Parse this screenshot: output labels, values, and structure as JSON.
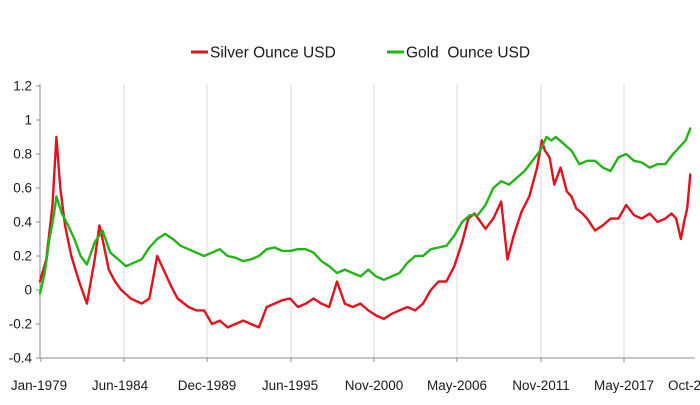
{
  "chart_data": {
    "type": "line",
    "title": "",
    "xlabel": "",
    "ylabel": "",
    "ylim": [
      -0.4,
      1.2
    ],
    "y_ticks": [
      "-0.4",
      "-0.2",
      "0",
      "0.2",
      "0.4",
      "0.6",
      "0.8",
      "1",
      "1.2"
    ],
    "x_ticks": [
      "Jan-1979",
      "Jun-1984",
      "Dec-1989",
      "Jun-1995",
      "Nov-2000",
      "May-2006",
      "Nov-2011",
      "May-2017",
      "Oct-2"
    ],
    "grid": "vertical",
    "legend_position": "top",
    "series": [
      {
        "name": "Silver Ounce USD",
        "color": "#e0121c",
        "x": [
          1979.0,
          1979.4,
          1979.8,
          1980.05,
          1980.3,
          1980.6,
          1981.0,
          1981.5,
          1982.0,
          1982.5,
          1982.8,
          1983.0,
          1983.4,
          1983.8,
          1984.2,
          1984.8,
          1985.5,
          1986.0,
          1986.5,
          1987.0,
          1987.4,
          1987.8,
          1988.5,
          1989.0,
          1989.5,
          1990.0,
          1990.5,
          1991.0,
          1991.5,
          1992.0,
          1992.5,
          1993.0,
          1993.5,
          1994.0,
          1994.5,
          1995.0,
          1995.5,
          1996.0,
          1996.5,
          1997.0,
          1997.5,
          1998.0,
          1998.5,
          1999.0,
          1999.5,
          2000.0,
          2000.5,
          2001.0,
          2001.5,
          2002.0,
          2002.5,
          2003.0,
          2003.5,
          2004.0,
          2004.5,
          2005.0,
          2005.5,
          2006.0,
          2006.4,
          2006.8,
          2007.5,
          2008.0,
          2008.5,
          2008.9,
          2009.3,
          2009.8,
          2010.3,
          2010.8,
          2011.1,
          2011.3,
          2011.6,
          2011.9,
          2012.3,
          2012.7,
          2013.0,
          2013.3,
          2013.7,
          2014.0,
          2014.5,
          2015.0,
          2015.5,
          2016.0,
          2016.5,
          2017.0,
          2017.5,
          2018.0,
          2018.5,
          2019.0,
          2019.4,
          2019.7,
          2020.0,
          2020.2,
          2020.4,
          2020.6
        ],
        "values": [
          0.05,
          0.18,
          0.5,
          0.9,
          0.6,
          0.38,
          0.2,
          0.05,
          -0.08,
          0.18,
          0.38,
          0.3,
          0.12,
          0.05,
          0.0,
          -0.05,
          -0.08,
          -0.05,
          0.2,
          0.1,
          0.02,
          -0.05,
          -0.1,
          -0.12,
          -0.12,
          -0.2,
          -0.18,
          -0.22,
          -0.2,
          -0.18,
          -0.2,
          -0.22,
          -0.1,
          -0.08,
          -0.06,
          -0.05,
          -0.1,
          -0.08,
          -0.05,
          -0.08,
          -0.1,
          0.05,
          -0.08,
          -0.1,
          -0.08,
          -0.12,
          -0.15,
          -0.17,
          -0.14,
          -0.12,
          -0.1,
          -0.12,
          -0.08,
          0.0,
          0.05,
          0.05,
          0.14,
          0.28,
          0.42,
          0.45,
          0.36,
          0.42,
          0.52,
          0.18,
          0.32,
          0.46,
          0.55,
          0.72,
          0.88,
          0.82,
          0.78,
          0.62,
          0.72,
          0.58,
          0.55,
          0.48,
          0.45,
          0.42,
          0.35,
          0.38,
          0.42,
          0.42,
          0.5,
          0.44,
          0.42,
          0.45,
          0.4,
          0.42,
          0.45,
          0.42,
          0.3,
          0.4,
          0.48,
          0.68
        ]
      },
      {
        "name": "Gold  Ounce USD",
        "color": "#22b518",
        "x": [
          1979.0,
          1979.3,
          1979.6,
          1979.9,
          1980.05,
          1980.4,
          1980.8,
          1981.2,
          1981.6,
          1982.0,
          1982.5,
          1983.0,
          1983.5,
          1984.0,
          1984.5,
          1985.0,
          1985.5,
          1986.0,
          1986.5,
          1987.0,
          1987.5,
          1988.0,
          1988.5,
          1989.0,
          1989.5,
          1990.0,
          1990.5,
          1991.0,
          1991.5,
          1992.0,
          1992.5,
          1993.0,
          1993.5,
          1994.0,
          1994.5,
          1995.0,
          1995.5,
          1996.0,
          1996.5,
          1997.0,
          1997.5,
          1998.0,
          1998.5,
          1999.0,
          1999.5,
          2000.0,
          2000.5,
          2001.0,
          2001.5,
          2002.0,
          2002.5,
          2003.0,
          2003.5,
          2004.0,
          2004.5,
          2005.0,
          2005.5,
          2006.0,
          2006.5,
          2007.0,
          2007.5,
          2008.0,
          2008.5,
          2009.0,
          2009.5,
          2010.0,
          2010.5,
          2011.0,
          2011.4,
          2011.7,
          2012.0,
          2012.5,
          2013.0,
          2013.5,
          2014.0,
          2014.5,
          2015.0,
          2015.5,
          2016.0,
          2016.5,
          2017.0,
          2017.5,
          2018.0,
          2018.5,
          2019.0,
          2019.5,
          2020.0,
          2020.3,
          2020.6
        ],
        "values": [
          -0.02,
          0.1,
          0.3,
          0.45,
          0.55,
          0.45,
          0.38,
          0.3,
          0.2,
          0.15,
          0.28,
          0.35,
          0.22,
          0.18,
          0.14,
          0.16,
          0.18,
          0.25,
          0.3,
          0.33,
          0.3,
          0.26,
          0.24,
          0.22,
          0.2,
          0.22,
          0.24,
          0.2,
          0.19,
          0.17,
          0.18,
          0.2,
          0.24,
          0.25,
          0.23,
          0.23,
          0.24,
          0.24,
          0.22,
          0.17,
          0.14,
          0.1,
          0.12,
          0.1,
          0.08,
          0.12,
          0.08,
          0.06,
          0.08,
          0.1,
          0.16,
          0.2,
          0.2,
          0.24,
          0.25,
          0.26,
          0.32,
          0.4,
          0.44,
          0.44,
          0.5,
          0.6,
          0.64,
          0.62,
          0.66,
          0.7,
          0.76,
          0.82,
          0.9,
          0.88,
          0.9,
          0.86,
          0.82,
          0.74,
          0.76,
          0.76,
          0.72,
          0.7,
          0.78,
          0.8,
          0.76,
          0.75,
          0.72,
          0.74,
          0.74,
          0.8,
          0.85,
          0.88,
          0.95
        ]
      }
    ]
  }
}
